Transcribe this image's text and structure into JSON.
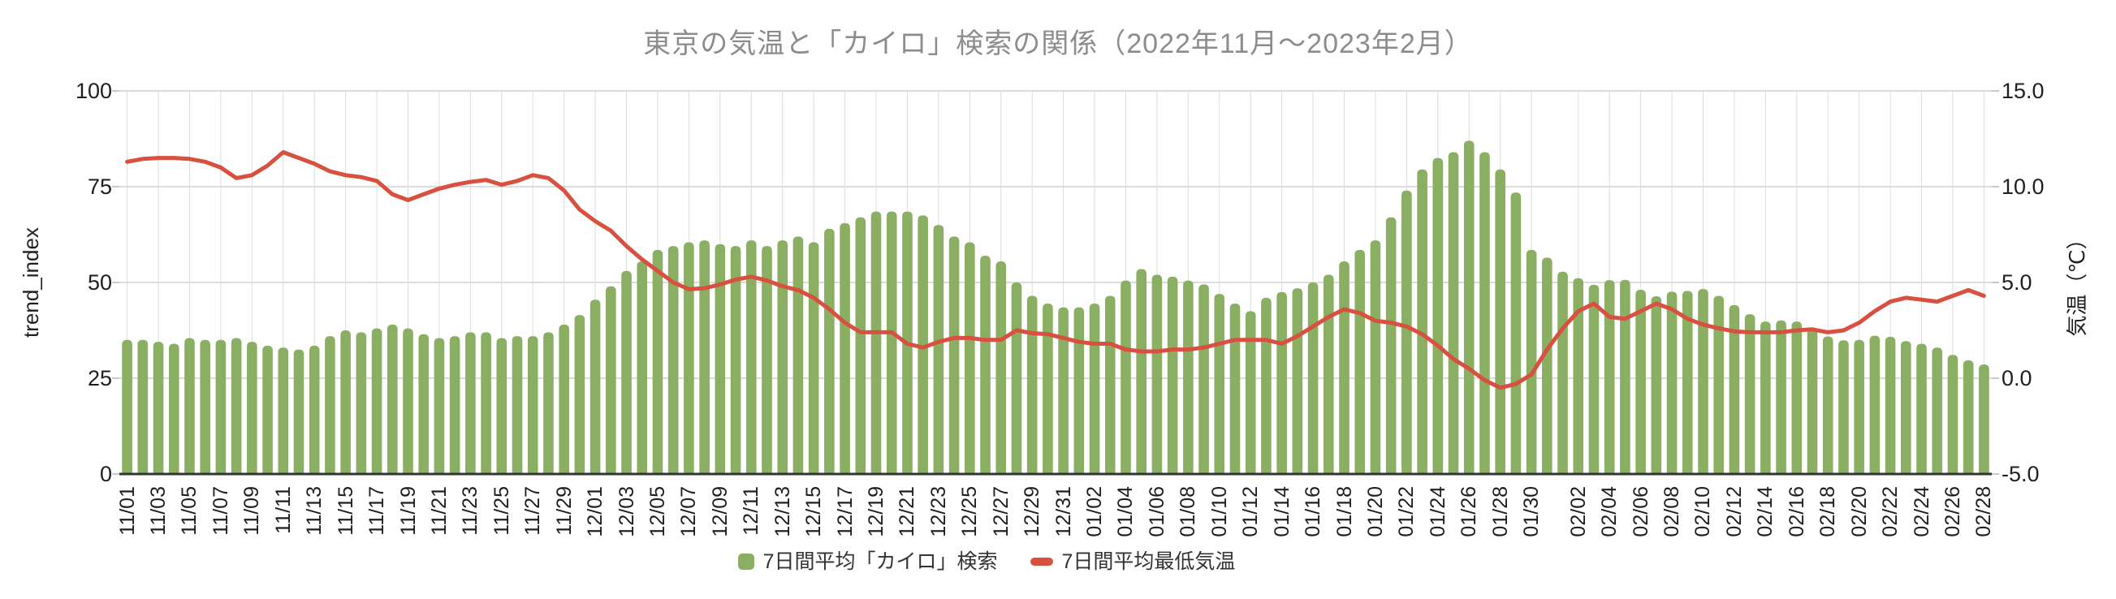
{
  "title": "東京の気温と「カイロ」検索の関係（2022年11月～2023年2月）",
  "colors": {
    "bar_green": "#8aae62",
    "line_red": "#d8503f",
    "grid": "#dcdcdc",
    "axis_line": "#333333",
    "tick_text": "#1f1f1f",
    "title_text": "#8c8c8c",
    "legend_text": "#333333"
  },
  "left_axis": {
    "title": "trend_index",
    "ticks": [
      "0",
      "25",
      "50",
      "75",
      "100"
    ]
  },
  "right_axis": {
    "title": "気温（℃）",
    "ticks": [
      "-5.0",
      "0.0",
      "5.0",
      "10.0",
      "15.0"
    ]
  },
  "legend": [
    {
      "label": "7日間平均「カイロ」検索",
      "type": "bar",
      "color": "#8aae62"
    },
    {
      "label": "7日間平均最低気温",
      "type": "line",
      "color": "#d8503f"
    }
  ],
  "chart_data": {
    "type": "bar+line",
    "title": "東京の気温と「カイロ」検索の関係（2022年11月～2023年2月）",
    "grid": true,
    "left_ylim": [
      0,
      100
    ],
    "right_ylim": [
      -5,
      15
    ],
    "x": [
      "11/01",
      "11/02",
      "11/03",
      "11/04",
      "11/05",
      "11/06",
      "11/07",
      "11/08",
      "11/09",
      "11/10",
      "11/11",
      "11/12",
      "11/13",
      "11/14",
      "11/15",
      "11/16",
      "11/17",
      "11/18",
      "11/19",
      "11/20",
      "11/21",
      "11/22",
      "11/23",
      "11/24",
      "11/25",
      "11/26",
      "11/27",
      "11/28",
      "11/29",
      "11/30",
      "12/01",
      "12/02",
      "12/03",
      "12/04",
      "12/05",
      "12/06",
      "12/07",
      "12/08",
      "12/09",
      "12/10",
      "12/11",
      "12/12",
      "12/13",
      "12/14",
      "12/15",
      "12/16",
      "12/17",
      "12/18",
      "12/19",
      "12/20",
      "12/21",
      "12/22",
      "12/23",
      "12/24",
      "12/25",
      "12/26",
      "12/27",
      "12/28",
      "12/29",
      "12/30",
      "12/31",
      "01/01",
      "01/02",
      "01/03",
      "01/04",
      "01/05",
      "01/06",
      "01/07",
      "01/08",
      "01/09",
      "01/10",
      "01/11",
      "01/12",
      "01/13",
      "01/14",
      "01/15",
      "01/16",
      "01/17",
      "01/18",
      "01/19",
      "01/20",
      "01/21",
      "01/22",
      "01/23",
      "01/24",
      "01/25",
      "01/26",
      "01/27",
      "01/28",
      "01/29",
      "01/30",
      "01/31",
      "02/01",
      "02/02",
      "02/03",
      "02/04",
      "02/05",
      "02/06",
      "02/07",
      "02/08",
      "02/09",
      "02/10",
      "02/11",
      "02/12",
      "02/13",
      "02/14",
      "02/15",
      "02/16",
      "02/17",
      "02/18",
      "02/19",
      "02/20",
      "02/21",
      "02/22",
      "02/23",
      "02/24",
      "02/25",
      "02/26",
      "02/27",
      "02/28"
    ],
    "x_tick_dates": [
      "11/01",
      "11/03",
      "11/05",
      "11/07",
      "11/09",
      "11/11",
      "11/13",
      "11/15",
      "11/17",
      "11/19",
      "11/21",
      "11/23",
      "11/25",
      "11/27",
      "11/29",
      "12/01",
      "12/03",
      "12/05",
      "12/07",
      "12/09",
      "12/11",
      "12/13",
      "12/15",
      "12/17",
      "12/19",
      "12/21",
      "12/23",
      "12/25",
      "12/27",
      "12/29",
      "12/31",
      "01/02",
      "01/04",
      "01/06",
      "01/08",
      "01/10",
      "01/12",
      "01/14",
      "01/16",
      "01/18",
      "01/20",
      "01/22",
      "01/24",
      "01/26",
      "01/28",
      "01/30",
      "02/02",
      "02/04",
      "02/06",
      "02/08",
      "02/10",
      "02/12",
      "02/14",
      "02/16",
      "02/18",
      "02/20",
      "02/22",
      "02/24",
      "02/26",
      "02/28"
    ],
    "series": [
      {
        "name": "7日間平均「カイロ」検索",
        "type": "bar",
        "axis": "left",
        "values": [
          35,
          35,
          34.5,
          34,
          35.5,
          35,
          35,
          35.5,
          34.5,
          33.5,
          33,
          32.5,
          33.5,
          36,
          37.5,
          37,
          38,
          39,
          38,
          36.5,
          35.5,
          36,
          37,
          37,
          35.5,
          36,
          36,
          37,
          39,
          41.5,
          45.5,
          49,
          53,
          55.5,
          58.5,
          59.5,
          60.5,
          61,
          60,
          59.5,
          61,
          59.5,
          61,
          62,
          60.5,
          64,
          65.5,
          67,
          68.5,
          68.5,
          68.5,
          67.5,
          65,
          62,
          60.5,
          57,
          55.5,
          50,
          46.5,
          44.5,
          43.5,
          43.5,
          44.5,
          46.5,
          50.5,
          53.5,
          52,
          51.5,
          50.5,
          49.5,
          47,
          44.5,
          42.5,
          46,
          47.5,
          48.5,
          50,
          52,
          55.5,
          58.5,
          61,
          67,
          74,
          79.5,
          82.5,
          84,
          87,
          84,
          79.5,
          73.5,
          58.5,
          56.5,
          52.8,
          51.1,
          49.4,
          50.6,
          50.7,
          48.1,
          46.4,
          47.6,
          47.8,
          48.3,
          46.5,
          44.1,
          41.7,
          39.8,
          40.1,
          39.8,
          37.9,
          35.9,
          34.9,
          35,
          36.1,
          35.8,
          34.7,
          34,
          33,
          31.1,
          29.7,
          28.6
        ]
      },
      {
        "name": "7日間平均最低気温",
        "type": "line",
        "axis": "right",
        "values": [
          11.3,
          11.45,
          11.5,
          11.5,
          11.45,
          11.3,
          11.0,
          10.45,
          10.6,
          11.1,
          11.8,
          11.5,
          11.2,
          10.8,
          10.6,
          10.5,
          10.3,
          9.6,
          9.3,
          9.6,
          9.9,
          10.1,
          10.25,
          10.35,
          10.1,
          10.3,
          10.6,
          10.45,
          9.8,
          8.8,
          8.2,
          7.7,
          6.9,
          6.2,
          5.6,
          5.0,
          4.65,
          4.7,
          4.9,
          5.15,
          5.3,
          5.1,
          4.8,
          4.6,
          4.2,
          3.6,
          2.9,
          2.4,
          2.4,
          2.4,
          1.8,
          1.6,
          1.9,
          2.1,
          2.1,
          2.0,
          2.0,
          2.5,
          2.35,
          2.3,
          2.1,
          1.9,
          1.8,
          1.8,
          1.5,
          1.4,
          1.4,
          1.5,
          1.5,
          1.6,
          1.8,
          2.0,
          2.0,
          2.0,
          1.8,
          2.2,
          2.7,
          3.2,
          3.6,
          3.4,
          3.0,
          2.9,
          2.7,
          2.3,
          1.7,
          1.0,
          0.5,
          -0.1,
          -0.5,
          -0.3,
          0.2,
          1.5,
          2.6,
          3.5,
          3.9,
          3.2,
          3.1,
          3.5,
          3.9,
          3.6,
          3.1,
          2.8,
          2.6,
          2.45,
          2.4,
          2.4,
          2.4,
          2.5,
          2.55,
          2.4,
          2.5,
          2.9,
          3.5,
          4.0,
          4.2,
          4.1,
          4.0,
          4.3,
          4.6,
          4.3
        ]
      }
    ]
  }
}
